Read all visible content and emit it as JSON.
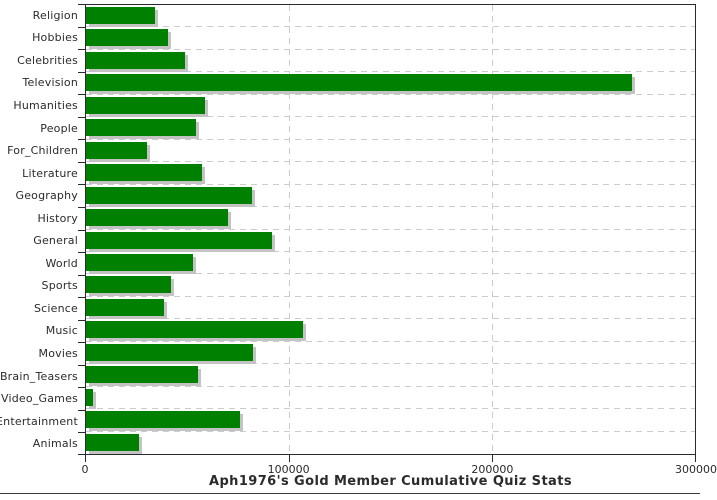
{
  "chart_data": {
    "type": "bar",
    "orientation": "horizontal",
    "title": "Aph1976's Gold Member Cumulative Quiz Stats",
    "categories": [
      "Religion",
      "Hobbies",
      "Celebrities",
      "Television",
      "Humanities",
      "People",
      "For_Children",
      "Literature",
      "Geography",
      "History",
      "General",
      "World",
      "Sports",
      "Science",
      "Music",
      "Movies",
      "Brain_Teasers",
      "Video_Games",
      "Entertainment",
      "Animals"
    ],
    "values": [
      34000,
      40500,
      49000,
      269000,
      58500,
      54000,
      30000,
      57000,
      82000,
      70000,
      91500,
      52500,
      42000,
      38500,
      107000,
      82500,
      55000,
      3500,
      76000,
      26000
    ],
    "xlim": [
      0,
      300000
    ],
    "x_ticks": [
      0,
      100000,
      200000,
      300000
    ],
    "x_tick_labels": [
      "0",
      "100000",
      "200000",
      "300000"
    ],
    "grid": true,
    "legend": "none",
    "bar_color": "#008000",
    "bar_shadow_color": "#c3c3c3",
    "gridline_color": "#cccccc",
    "axis_color": "#2b2b2b",
    "text_color": "#2b2b2b"
  }
}
